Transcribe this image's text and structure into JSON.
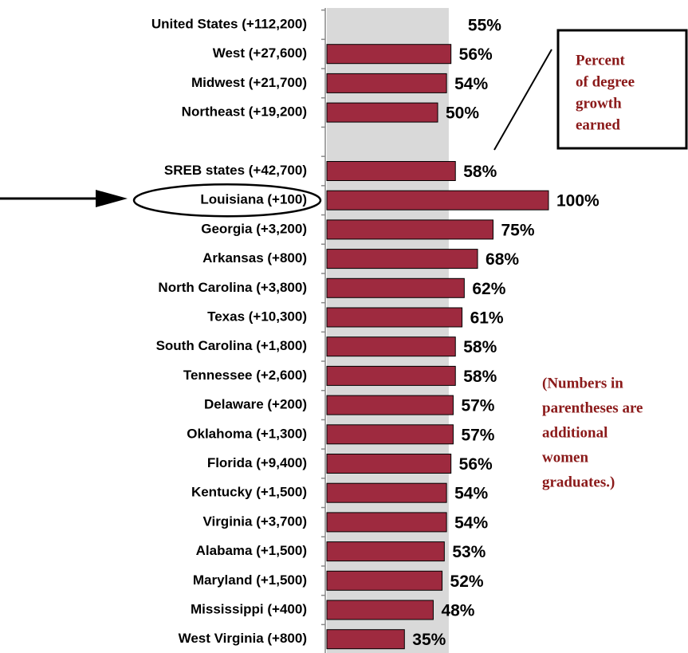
{
  "chart_data": {
    "type": "hbar",
    "categories": [
      "United States (+112,200)",
      "West (+27,600)",
      "Midwest (+21,700)",
      "Northeast (+19,200)",
      null,
      "SREB states (+42,700)",
      "Louisiana (+100)",
      "Georgia (+3,200)",
      "Arkansas (+800)",
      "North Carolina (+3,800)",
      "Texas (+10,300)",
      "South Carolina (+1,800)",
      "Tennessee (+2,600)",
      "Delaware (+200)",
      "Oklahoma (+1,300)",
      "Florida (+9,400)",
      "Kentucky (+1,500)",
      "Virginia (+3,700)",
      "Alabama (+1,500)",
      "Maryland (+1,500)",
      "Mississippi (+400)",
      "West Virginia (+800)"
    ],
    "values": [
      55,
      56,
      54,
      50,
      null,
      58,
      100,
      75,
      68,
      62,
      61,
      58,
      58,
      57,
      57,
      56,
      54,
      54,
      53,
      52,
      48,
      35
    ],
    "value_labels": [
      "55%",
      "56%",
      "54%",
      "50%",
      null,
      "58%",
      "100%",
      "75%",
      "68%",
      "62%",
      "61%",
      "58%",
      "58%",
      "57%",
      "57%",
      "56%",
      "54%",
      "54%",
      "53%",
      "52%",
      "48%",
      "35%"
    ],
    "colors": [
      "#d9d9d9",
      "#9e2a3f",
      "#9e2a3f",
      "#9e2a3f",
      null,
      "#9e2a3f",
      "#9e2a3f",
      "#9e2a3f",
      "#9e2a3f",
      "#9e2a3f",
      "#9e2a3f",
      "#9e2a3f",
      "#9e2a3f",
      "#9e2a3f",
      "#9e2a3f",
      "#9e2a3f",
      "#9e2a3f",
      "#9e2a3f",
      "#9e2a3f",
      "#9e2a3f",
      "#9e2a3f",
      "#9e2a3f"
    ],
    "xlim": [
      0,
      100
    ],
    "annotations": [
      {
        "lines": [
          "Percent",
          "of degree",
          "growth",
          "earned"
        ]
      },
      {
        "lines": [
          "(Numbers in",
          "parentheses are",
          "additional",
          "women",
          "graduates.)"
        ]
      }
    ]
  }
}
